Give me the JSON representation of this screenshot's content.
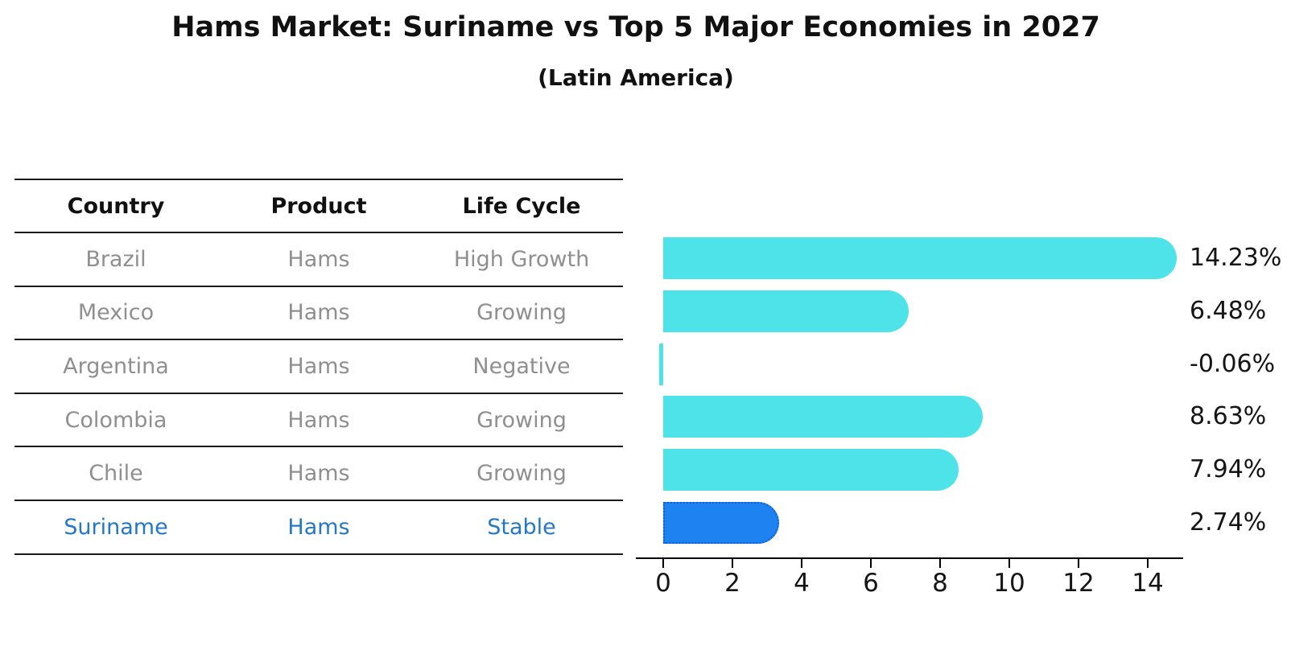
{
  "title": "Hams Market: Suriname vs Top 5 Major Economies in 2027",
  "subtitle": "(Latin America)",
  "table": {
    "headers": [
      "Country",
      "Product",
      "Life Cycle"
    ],
    "rows": [
      {
        "country": "Brazil",
        "product": "Hams",
        "life_cycle": "High Growth",
        "highlight": false
      },
      {
        "country": "Mexico",
        "product": "Hams",
        "life_cycle": "Growing",
        "highlight": false
      },
      {
        "country": "Argentina",
        "product": "Hams",
        "life_cycle": "Negative",
        "highlight": false
      },
      {
        "country": "Colombia",
        "product": "Hams",
        "life_cycle": "Growing",
        "highlight": false
      },
      {
        "country": "Chile",
        "product": "Hams",
        "life_cycle": "Growing",
        "highlight": false
      },
      {
        "country": "Suriname",
        "product": "Hams",
        "life_cycle": "Stable",
        "highlight": true
      }
    ]
  },
  "chart_data": {
    "type": "bar",
    "orientation": "horizontal",
    "title": "Hams Market: Suriname vs Top 5 Major Economies in 2027",
    "subtitle": "(Latin America)",
    "categories": [
      "Brazil",
      "Mexico",
      "Argentina",
      "Colombia",
      "Chile",
      "Suriname"
    ],
    "values": [
      14.23,
      6.48,
      -0.06,
      8.63,
      7.94,
      2.74
    ],
    "value_labels": [
      "14.23%",
      "6.48%",
      "-0.06%",
      "8.63%",
      "7.94%",
      "2.74%"
    ],
    "x_ticks": [
      0,
      2,
      4,
      6,
      8,
      10,
      12,
      14
    ],
    "xlim": [
      -0.8,
      15.1
    ],
    "xlabel": "",
    "ylabel": "",
    "grid": false,
    "legend": false,
    "highlight_category": "Suriname"
  },
  "colors": {
    "bar_default": "#4de3e8",
    "bar_highlight": "#1e82f0",
    "bar_highlight_border": "#0d63d4",
    "highlight_text": "#2478c8",
    "row_text": "#8f8f8f",
    "header_text": "#111111",
    "axis": "#000000"
  }
}
